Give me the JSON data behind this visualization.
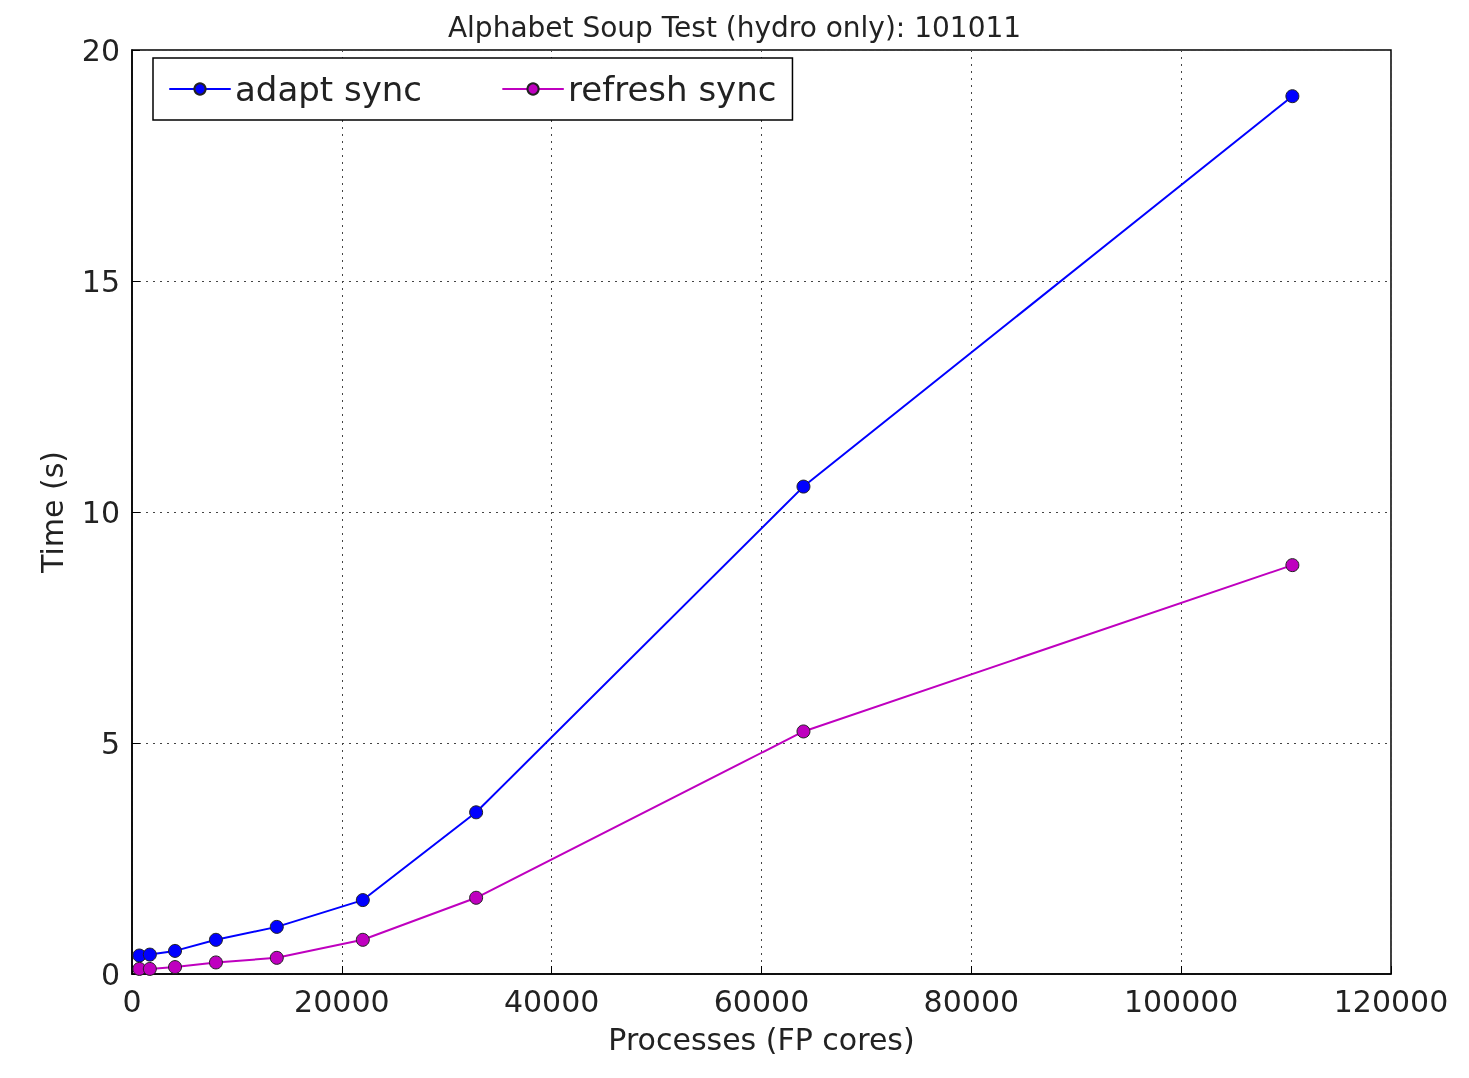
{
  "chart_data": {
    "type": "line",
    "title": "Alphabet Soup Test (hydro only): 101011",
    "xlabel": "Processes (FP cores)",
    "ylabel": "Time (s)",
    "x": [
      700,
      1700,
      4100,
      8000,
      13800,
      22000,
      32800,
      64000,
      110600
    ],
    "series": [
      {
        "name": "adapt sync",
        "color": "#0000ff",
        "values": [
          0.4,
          0.42,
          0.5,
          0.74,
          1.02,
          1.6,
          3.5,
          10.55,
          19.0
        ]
      },
      {
        "name": "refresh sync",
        "color": "#bf00bf",
        "values": [
          0.11,
          0.11,
          0.15,
          0.25,
          0.35,
          0.74,
          1.65,
          5.25,
          8.85
        ]
      }
    ],
    "xlim": [
      0,
      120000
    ],
    "xticks": [
      0,
      20000,
      40000,
      60000,
      80000,
      100000,
      120000
    ],
    "ylim": [
      0,
      20
    ],
    "yticks": [
      0,
      5,
      10,
      15,
      20
    ],
    "grid": true,
    "legend": "top left",
    "marker": "circle",
    "line_style": "solid"
  }
}
